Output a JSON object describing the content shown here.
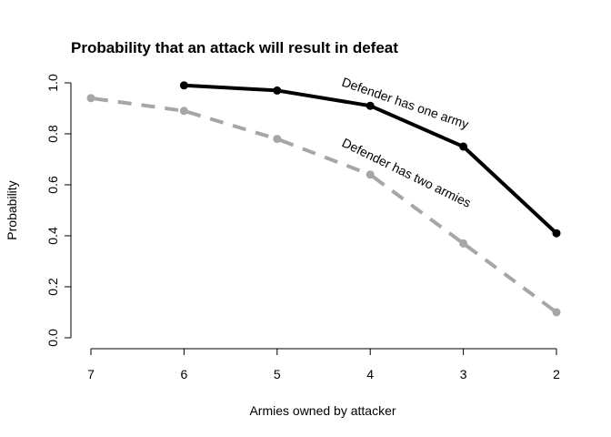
{
  "chart_data": {
    "type": "line",
    "title": "Probability that an attack will result in defeat",
    "xlabel": "Armies owned by attacker",
    "ylabel": "Probability",
    "x_ticks": [
      7,
      6,
      5,
      4,
      3,
      2
    ],
    "y_ticks": [
      "0.0",
      "0.2",
      "0.4",
      "0.6",
      "0.8",
      "1.0"
    ],
    "xlim": [
      7,
      2
    ],
    "ylim": [
      0,
      1
    ],
    "grid": false,
    "series": [
      {
        "key": "one",
        "name": "Defender has one army",
        "color": "#000000",
        "style": "solid",
        "x": [
          6,
          5,
          4,
          3,
          2
        ],
        "values": [
          0.99,
          0.97,
          0.91,
          0.75,
          0.41
        ]
      },
      {
        "key": "two",
        "name": "Defender has two armies",
        "color": "#a6a6a6",
        "style": "dashed",
        "x": [
          7,
          6,
          5,
          4,
          3,
          2
        ],
        "values": [
          0.94,
          0.89,
          0.78,
          0.64,
          0.37,
          0.1
        ]
      }
    ]
  }
}
